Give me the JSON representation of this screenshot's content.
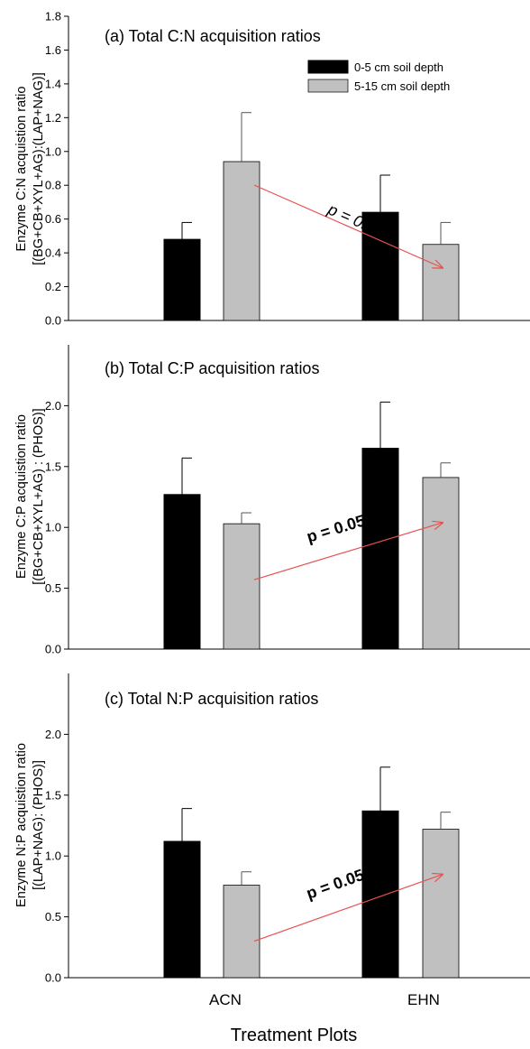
{
  "figure": {
    "xlabel": "Treatment Plots",
    "categories": [
      "ACN",
      "EHN"
    ]
  },
  "legend": {
    "entries": [
      {
        "label": "0-5 cm soil depth",
        "color": "#000000"
      },
      {
        "label": "5-15 cm soil depth",
        "color": "#c0c0c0"
      }
    ]
  },
  "colors": {
    "series_0_5": "#000000",
    "series_5_15": "#c0c0c0",
    "arrow": "#e85050"
  },
  "chart_data": [
    {
      "type": "bar",
      "title": "(a)  Total C:N acquisition ratios",
      "ylabel_line1": "Enzyme C:N acquistion ratio",
      "ylabel_line2": "[(BG+CB+XYL+AG):(LAP+NAG)]",
      "categories": [
        "ACN",
        "EHN"
      ],
      "ylim": [
        0,
        1.8
      ],
      "yticks": [
        "0.0",
        "0.2",
        "0.4",
        "0.6",
        "0.8",
        "1.0",
        "1.2",
        "1.4",
        "1.6",
        "1.8"
      ],
      "series": [
        {
          "name": "0-5 cm soil depth",
          "values": [
            0.48,
            0.64
          ],
          "errors": [
            0.1,
            0.22
          ]
        },
        {
          "name": "5-15 cm soil depth",
          "values": [
            0.94,
            0.45
          ],
          "errors": [
            0.29,
            0.13
          ]
        }
      ],
      "annotation": {
        "text": "p = 0.2",
        "from": {
          "category": "ACN",
          "series": 1
        },
        "to": {
          "category": "EHN",
          "series": 1
        }
      }
    },
    {
      "type": "bar",
      "title": "(b)  Total C:P acquisition ratios",
      "ylabel_line1": "Enzyme C:P acquistion ratio",
      "ylabel_line2": "[(BG+CB+XYL+AG) : (PHOS)]",
      "categories": [
        "ACN",
        "EHN"
      ],
      "ylim": [
        0,
        2.5
      ],
      "yticks": [
        "0.0",
        "0.5",
        "1.0",
        "1.5",
        "2.0"
      ],
      "series": [
        {
          "name": "0-5 cm soil depth",
          "values": [
            1.27,
            1.65
          ],
          "errors": [
            0.3,
            0.38
          ]
        },
        {
          "name": "5-15 cm soil depth",
          "values": [
            1.03,
            1.41
          ],
          "errors": [
            0.09,
            0.12
          ]
        }
      ],
      "annotation": {
        "text": "p = 0.05",
        "from": {
          "category": "ACN",
          "series": 1
        },
        "to": {
          "category": "EHN",
          "series": 1
        }
      }
    },
    {
      "type": "bar",
      "title": "(c)  Total N:P acquisition ratios",
      "ylabel_line1": "Enzyme N:P acquistion ratio",
      "ylabel_line2": "[(LAP+NAG): (PHOS)]",
      "categories": [
        "ACN",
        "EHN"
      ],
      "ylim": [
        0,
        2.5
      ],
      "yticks": [
        "0.0",
        "0.5",
        "1.0",
        "1.5",
        "2.0"
      ],
      "series": [
        {
          "name": "0-5 cm soil depth",
          "values": [
            1.12,
            1.37
          ],
          "errors": [
            0.27,
            0.36
          ]
        },
        {
          "name": "5-15 cm soil depth",
          "values": [
            0.76,
            1.22
          ],
          "errors": [
            0.11,
            0.14
          ]
        }
      ],
      "annotation": {
        "text": "p = 0.05",
        "from": {
          "category": "ACN",
          "series": 1
        },
        "to": {
          "category": "EHN",
          "series": 1
        }
      }
    }
  ]
}
